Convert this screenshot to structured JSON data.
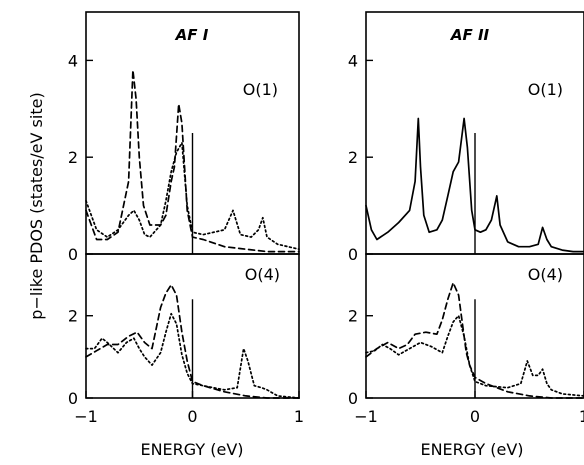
{
  "ylabel": "p−like PDOS (states/eV site)",
  "xlabel": "ENERGY (eV)",
  "panels_left_title": "AF I",
  "panels_right_title": "AF II",
  "chart_data": [
    {
      "type": "line",
      "column": "AF I",
      "row": "top",
      "title": "AF I",
      "label": "O(1)",
      "xlim": [
        -1,
        1
      ],
      "ylim": [
        0,
        5
      ],
      "yticks": [
        "4",
        "2",
        "0"
      ],
      "ytick_values": [
        4,
        2,
        0
      ],
      "vline_x": 0,
      "vline_height": 2.5,
      "series": [
        {
          "style": "dashed",
          "x": [
            -1.0,
            -0.9,
            -0.8,
            -0.7,
            -0.6,
            -0.56,
            -0.53,
            -0.5,
            -0.46,
            -0.4,
            -0.3,
            -0.25,
            -0.2,
            -0.17,
            -0.13,
            -0.1,
            -0.05,
            0.0,
            0.1,
            0.3,
            0.5,
            0.7,
            0.9,
            1.0
          ],
          "y": [
            0.9,
            0.3,
            0.3,
            0.45,
            1.5,
            3.8,
            3.2,
            2.0,
            1.0,
            0.6,
            0.6,
            0.8,
            1.5,
            1.8,
            3.1,
            2.7,
            0.9,
            0.35,
            0.3,
            0.15,
            0.1,
            0.05,
            0.05,
            0.05
          ]
        },
        {
          "style": "dotted",
          "x": [
            -1.0,
            -0.9,
            -0.8,
            -0.7,
            -0.6,
            -0.55,
            -0.5,
            -0.45,
            -0.4,
            -0.3,
            -0.25,
            -0.2,
            -0.15,
            -0.1,
            -0.05,
            0.0,
            0.1,
            0.3,
            0.38,
            0.45,
            0.55,
            0.62,
            0.66,
            0.7,
            0.8,
            1.0
          ],
          "y": [
            1.1,
            0.5,
            0.35,
            0.5,
            0.8,
            0.9,
            0.7,
            0.4,
            0.35,
            0.6,
            1.1,
            1.7,
            2.1,
            2.3,
            1.0,
            0.45,
            0.4,
            0.5,
            0.9,
            0.4,
            0.35,
            0.5,
            0.75,
            0.35,
            0.2,
            0.1
          ]
        }
      ]
    },
    {
      "type": "line",
      "column": "AF I",
      "row": "bottom",
      "label": "O(4)",
      "xlim": [
        -1,
        1
      ],
      "ylim": [
        0,
        3.5
      ],
      "yticks": [
        "2",
        "0"
      ],
      "ytick_values": [
        2,
        0
      ],
      "xticks": [
        "−1",
        "0",
        "1"
      ],
      "xtick_values": [
        -1,
        0,
        1
      ],
      "vline_x": 0,
      "vline_height": 2.4,
      "series": [
        {
          "style": "dashed",
          "x": [
            -1.0,
            -0.9,
            -0.8,
            -0.7,
            -0.6,
            -0.52,
            -0.45,
            -0.38,
            -0.3,
            -0.25,
            -0.2,
            -0.15,
            -0.1,
            -0.05,
            0.0,
            0.1,
            0.3,
            0.5,
            0.7,
            1.0
          ],
          "y": [
            1.0,
            1.15,
            1.3,
            1.3,
            1.5,
            1.6,
            1.35,
            1.2,
            2.2,
            2.55,
            2.75,
            2.5,
            1.6,
            0.9,
            0.4,
            0.3,
            0.15,
            0.05,
            0.0,
            0.0
          ]
        },
        {
          "style": "dotted",
          "x": [
            -1.0,
            -0.92,
            -0.85,
            -0.8,
            -0.7,
            -0.62,
            -0.55,
            -0.5,
            -0.45,
            -0.38,
            -0.3,
            -0.25,
            -0.2,
            -0.15,
            -0.1,
            -0.05,
            0.0,
            0.1,
            0.3,
            0.42,
            0.48,
            0.52,
            0.58,
            0.65,
            0.7,
            0.8,
            1.0
          ],
          "y": [
            1.2,
            1.2,
            1.45,
            1.35,
            1.1,
            1.35,
            1.45,
            1.2,
            1.0,
            0.8,
            1.1,
            1.6,
            2.05,
            1.8,
            1.05,
            0.6,
            0.35,
            0.3,
            0.2,
            0.25,
            1.2,
            0.9,
            0.3,
            0.25,
            0.2,
            0.05,
            0.0
          ]
        }
      ]
    },
    {
      "type": "line",
      "column": "AF II",
      "row": "top",
      "title": "AF II",
      "label": "O(1)",
      "xlim": [
        -1,
        1
      ],
      "ylim": [
        0,
        5
      ],
      "yticks": [
        "4",
        "2",
        "0"
      ],
      "ytick_values": [
        4,
        2,
        0
      ],
      "vline_x": 0,
      "vline_height": 2.5,
      "series": [
        {
          "style": "solid",
          "x": [
            -1.0,
            -0.95,
            -0.9,
            -0.8,
            -0.7,
            -0.6,
            -0.55,
            -0.52,
            -0.5,
            -0.47,
            -0.42,
            -0.35,
            -0.3,
            -0.25,
            -0.2,
            -0.15,
            -0.1,
            -0.07,
            -0.03,
            0.0,
            0.05,
            0.1,
            0.15,
            0.2,
            0.23,
            0.3,
            0.4,
            0.5,
            0.58,
            0.62,
            0.66,
            0.7,
            0.8,
            0.9,
            1.0
          ],
          "y": [
            1.0,
            0.5,
            0.3,
            0.45,
            0.65,
            0.9,
            1.5,
            2.8,
            1.8,
            0.8,
            0.45,
            0.5,
            0.7,
            1.2,
            1.7,
            1.9,
            2.8,
            2.2,
            0.9,
            0.5,
            0.45,
            0.5,
            0.7,
            1.2,
            0.6,
            0.25,
            0.15,
            0.15,
            0.2,
            0.55,
            0.3,
            0.15,
            0.08,
            0.05,
            0.05
          ]
        }
      ]
    },
    {
      "type": "line",
      "column": "AF II",
      "row": "bottom",
      "label": "O(4)",
      "xlim": [
        -1,
        1
      ],
      "ylim": [
        0,
        3.5
      ],
      "yticks": [
        "2",
        "0"
      ],
      "ytick_values": [
        2,
        0
      ],
      "xticks": [
        "−1",
        "0",
        "1"
      ],
      "xtick_values": [
        -1,
        0,
        1
      ],
      "vline_x": 0,
      "vline_height": 2.4,
      "series": [
        {
          "style": "dashed",
          "x": [
            -1.0,
            -0.9,
            -0.8,
            -0.7,
            -0.62,
            -0.55,
            -0.45,
            -0.35,
            -0.3,
            -0.25,
            -0.2,
            -0.15,
            -0.12,
            -0.08,
            -0.05,
            0.0,
            0.1,
            0.3,
            0.5,
            0.7,
            1.0
          ],
          "y": [
            1.0,
            1.2,
            1.35,
            1.2,
            1.3,
            1.55,
            1.6,
            1.55,
            1.9,
            2.4,
            2.8,
            2.5,
            1.9,
            1.1,
            0.8,
            0.5,
            0.35,
            0.15,
            0.05,
            0.0,
            0.0
          ]
        },
        {
          "style": "dotted",
          "x": [
            -1.0,
            -0.92,
            -0.85,
            -0.78,
            -0.7,
            -0.6,
            -0.5,
            -0.4,
            -0.3,
            -0.25,
            -0.2,
            -0.15,
            -0.1,
            -0.05,
            0.0,
            0.1,
            0.3,
            0.42,
            0.48,
            0.53,
            0.58,
            0.62,
            0.66,
            0.7,
            0.8,
            1.0
          ],
          "y": [
            1.1,
            1.15,
            1.3,
            1.2,
            1.05,
            1.2,
            1.35,
            1.25,
            1.1,
            1.5,
            1.85,
            2.0,
            1.5,
            0.8,
            0.4,
            0.3,
            0.25,
            0.35,
            0.9,
            0.55,
            0.55,
            0.7,
            0.35,
            0.2,
            0.1,
            0.05
          ]
        }
      ]
    }
  ]
}
